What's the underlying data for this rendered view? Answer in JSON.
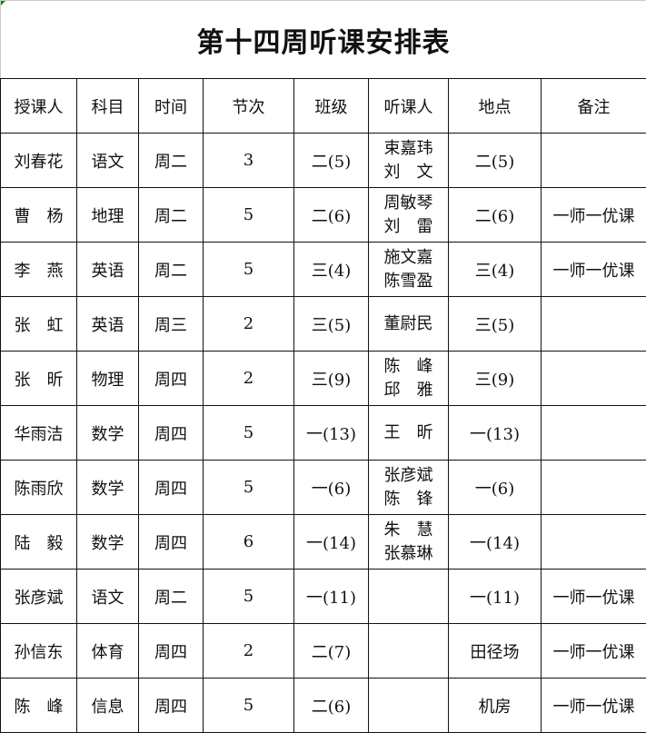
{
  "title": "第十四周听课安排表",
  "headers": [
    "授课人",
    "科目",
    "时间",
    "节次",
    "班级",
    "听课人",
    "地点",
    "备注"
  ],
  "rows": [
    {
      "teacher": "刘春花",
      "subject": "语文",
      "day": "周二",
      "period": "3",
      "class": "二(5)",
      "listeners": [
        "束嘉玮",
        "刘　文"
      ],
      "place": "二(5)",
      "note": ""
    },
    {
      "teacher": "曹　杨",
      "subject": "地理",
      "day": "周二",
      "period": "5",
      "class": "二(6)",
      "listeners": [
        "周敏琴",
        "刘　雷"
      ],
      "place": "二(6)",
      "note": "一师一优课"
    },
    {
      "teacher": "李　燕",
      "subject": "英语",
      "day": "周二",
      "period": "5",
      "class": "三(4)",
      "listeners": [
        "施文嘉",
        "陈雪盈"
      ],
      "place": "三(4)",
      "note": "一师一优课"
    },
    {
      "teacher": "张　虹",
      "subject": "英语",
      "day": "周三",
      "period": "2",
      "class": "三(5)",
      "listeners": [
        "董尉民"
      ],
      "place": "三(5)",
      "note": ""
    },
    {
      "teacher": "张　昕",
      "subject": "物理",
      "day": "周四",
      "period": "2",
      "class": "三(9)",
      "listeners": [
        "陈　峰",
        "邱　雅"
      ],
      "place": "三(9)",
      "note": ""
    },
    {
      "teacher": "华雨洁",
      "subject": "数学",
      "day": "周四",
      "period": "5",
      "class": "一(13)",
      "listeners": [
        "王　昕"
      ],
      "place": "一(13)",
      "note": ""
    },
    {
      "teacher": "陈雨欣",
      "subject": "数学",
      "day": "周四",
      "period": "5",
      "class": "一(6)",
      "listeners": [
        "张彦斌",
        "陈　锋"
      ],
      "place": "一(6)",
      "note": ""
    },
    {
      "teacher": "陆　毅",
      "subject": "数学",
      "day": "周四",
      "period": "6",
      "class": "一(14)",
      "listeners": [
        "朱　慧",
        "张慕琳"
      ],
      "place": "一(14)",
      "note": ""
    },
    {
      "teacher": "张彦斌",
      "subject": "语文",
      "day": "周二",
      "period": "5",
      "class": "一(11)",
      "listeners": [],
      "place": "一(11)",
      "note": "一师一优课"
    },
    {
      "teacher": "孙信东",
      "subject": "体育",
      "day": "周四",
      "period": "2",
      "class": "二(7)",
      "listeners": [],
      "place": "田径场",
      "note": "一师一优课"
    },
    {
      "teacher": "陈　峰",
      "subject": "信息",
      "day": "周四",
      "period": "5",
      "class": "二(6)",
      "listeners": [],
      "place": "机房",
      "note": "一师一优课"
    }
  ]
}
